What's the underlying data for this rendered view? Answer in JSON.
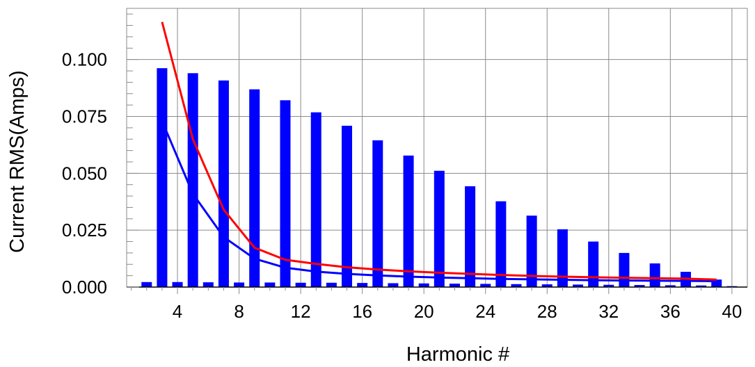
{
  "chart_data": {
    "type": "bar",
    "xlabel": "Harmonic #",
    "ylabel": "Current RMS(Amps)",
    "xlim": [
      0.7,
      41
    ],
    "ylim": [
      0,
      0.1225
    ],
    "xticks": [
      4,
      8,
      12,
      16,
      20,
      24,
      28,
      32,
      36,
      40
    ],
    "xtick_labels": [
      "4",
      "8",
      "12",
      "16",
      "20",
      "24",
      "28",
      "32",
      "36",
      "40"
    ],
    "yticks": [
      0,
      0.025,
      0.05,
      0.075,
      0.1
    ],
    "ytick_labels": [
      "0.000",
      "0.025",
      "0.050",
      "0.075",
      "0.100"
    ],
    "grid": true,
    "legend": "none",
    "bar_series": {
      "color": "#0000ff",
      "x": [
        2,
        3,
        4,
        5,
        6,
        7,
        8,
        9,
        10,
        11,
        12,
        13,
        14,
        15,
        16,
        17,
        18,
        19,
        20,
        21,
        22,
        23,
        24,
        25,
        26,
        27,
        28,
        29,
        30,
        31,
        32,
        33,
        34,
        35,
        36,
        37,
        38,
        39,
        40
      ],
      "values": [
        0.0022,
        0.0962,
        0.0022,
        0.094,
        0.0021,
        0.0908,
        0.002,
        0.0869,
        0.002,
        0.0821,
        0.0019,
        0.0768,
        0.0019,
        0.0709,
        0.0018,
        0.0645,
        0.0017,
        0.0578,
        0.0016,
        0.0511,
        0.0015,
        0.0443,
        0.0014,
        0.0377,
        0.0013,
        0.0314,
        0.0012,
        0.0254,
        0.0011,
        0.02,
        0.001,
        0.015,
        0.0009,
        0.0104,
        0.0008,
        0.0067,
        0.0007,
        0.0033,
        0.0004
      ]
    },
    "line_series": [
      {
        "color": "#0000ff",
        "x": [
          3,
          5,
          7,
          9,
          11,
          13,
          15,
          17,
          19,
          21,
          23,
          25,
          27,
          29,
          31,
          33,
          35,
          37,
          39
        ],
        "values": [
          0.073,
          0.041,
          0.022,
          0.0125,
          0.0085,
          0.0068,
          0.0058,
          0.0051,
          0.0046,
          0.0042,
          0.0039,
          0.0036,
          0.0034,
          0.0032,
          0.003,
          0.0029,
          0.0028,
          0.0027,
          0.0026
        ]
      },
      {
        "color": "#ff0000",
        "x": [
          3,
          5,
          7,
          9,
          11,
          13,
          15,
          17,
          19,
          21,
          23,
          25,
          27,
          29,
          31,
          33,
          35,
          37,
          39
        ],
        "values": [
          0.1165,
          0.065,
          0.034,
          0.0173,
          0.012,
          0.0102,
          0.0087,
          0.0077,
          0.0069,
          0.0063,
          0.0058,
          0.0053,
          0.0049,
          0.0046,
          0.0043,
          0.0041,
          0.0039,
          0.0037,
          0.0033
        ]
      }
    ]
  }
}
